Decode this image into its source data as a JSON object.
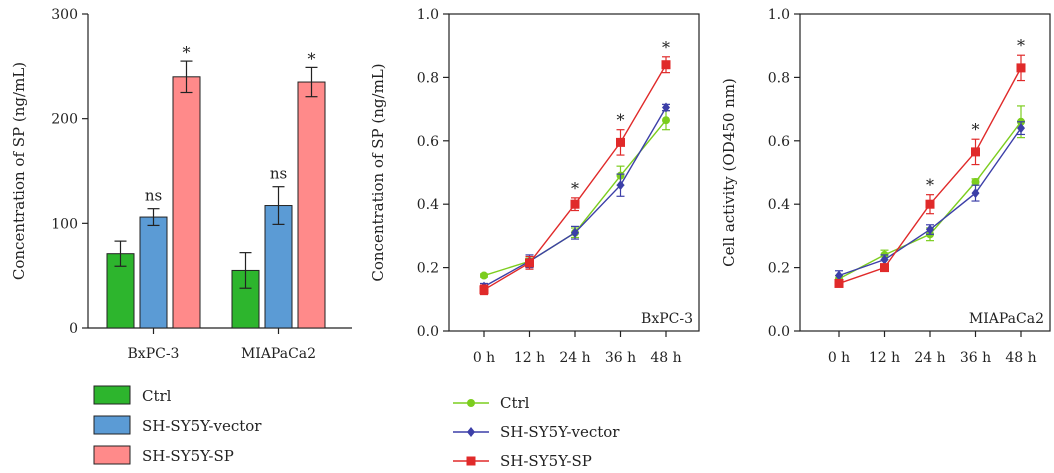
{
  "chart_data": [
    {
      "type": "bar",
      "categories": [
        "BxPC-3",
        "MIAPaCa2"
      ],
      "ylabel": "Concentration of SP (ng/mL)",
      "ylim": [
        0,
        300
      ],
      "yticks": [
        "0",
        "100",
        "200",
        "300"
      ],
      "series": [
        {
          "name": "Ctrl",
          "color": "#2db52d",
          "values": [
            71,
            55
          ],
          "errors": [
            12,
            17
          ],
          "marks": [
            "",
            ""
          ]
        },
        {
          "name": "SH-SY5Y-vector",
          "color": "#5b9bd5",
          "values": [
            106,
            117
          ],
          "errors": [
            8,
            18
          ],
          "marks": [
            "ns",
            "ns"
          ]
        },
        {
          "name": "SH-SY5Y-SP",
          "color": "#ff8a8a",
          "values": [
            240,
            235
          ],
          "errors": [
            15,
            14
          ],
          "marks": [
            "*",
            "*"
          ]
        }
      ]
    },
    {
      "type": "line",
      "panel_label": "BxPC-3",
      "ylabel": "Concentration of SP (ng/mL)",
      "ylim": [
        0,
        1.0
      ],
      "yticks": [
        "0.0",
        "0.2",
        "0.4",
        "0.6",
        "0.8",
        "1.0"
      ],
      "x": [
        "0 h",
        "12 h",
        "24 h",
        "36 h",
        "48 h"
      ],
      "sig_marks": [
        "",
        "",
        "*",
        "*",
        "*"
      ],
      "series": [
        {
          "name": "Ctrl",
          "color": "#7ccd1e",
          "marker": "circle",
          "values": [
            0.175,
            0.22,
            0.31,
            0.49,
            0.665
          ],
          "errors": [
            0.005,
            0.01,
            0.015,
            0.03,
            0.03
          ]
        },
        {
          "name": "SH-SY5Y-vector",
          "color": "#3c3fa8",
          "marker": "diamond",
          "values": [
            0.14,
            0.22,
            0.31,
            0.46,
            0.705
          ],
          "errors": [
            0.01,
            0.02,
            0.02,
            0.035,
            0.01
          ]
        },
        {
          "name": "SH-SY5Y-SP",
          "color": "#e02a2a",
          "marker": "square",
          "values": [
            0.13,
            0.215,
            0.4,
            0.595,
            0.84
          ],
          "errors": [
            0.015,
            0.02,
            0.02,
            0.04,
            0.025
          ]
        }
      ]
    },
    {
      "type": "line",
      "panel_label": "MIAPaCa2",
      "ylabel": "Cell activity (OD450 nm)",
      "ylim": [
        0,
        1.0
      ],
      "yticks": [
        "0.0",
        "0.2",
        "0.4",
        "0.6",
        "0.8",
        "1.0"
      ],
      "x": [
        "0 h",
        "12 h",
        "24 h",
        "36 h",
        "48 h"
      ],
      "sig_marks": [
        "",
        "",
        "*",
        "*",
        "*"
      ],
      "series": [
        {
          "name": "Ctrl",
          "color": "#7ccd1e",
          "marker": "circle",
          "values": [
            0.165,
            0.24,
            0.305,
            0.47,
            0.66
          ],
          "errors": [
            0.01,
            0.015,
            0.02,
            0.01,
            0.05
          ]
        },
        {
          "name": "SH-SY5Y-vector",
          "color": "#3c3fa8",
          "marker": "diamond",
          "values": [
            0.175,
            0.225,
            0.32,
            0.435,
            0.64
          ],
          "errors": [
            0.015,
            0.015,
            0.015,
            0.025,
            0.02
          ]
        },
        {
          "name": "SH-SY5Y-SP",
          "color": "#e02a2a",
          "marker": "square",
          "values": [
            0.15,
            0.2,
            0.4,
            0.565,
            0.83
          ],
          "errors": [
            0.01,
            0.01,
            0.03,
            0.04,
            0.04
          ]
        }
      ]
    }
  ],
  "legends": {
    "bar": [
      "Ctrl",
      "SH-SY5Y-vector",
      "SH-SY5Y-SP"
    ],
    "line": [
      "Ctrl",
      "SH-SY5Y-vector",
      "SH-SY5Y-SP"
    ]
  }
}
